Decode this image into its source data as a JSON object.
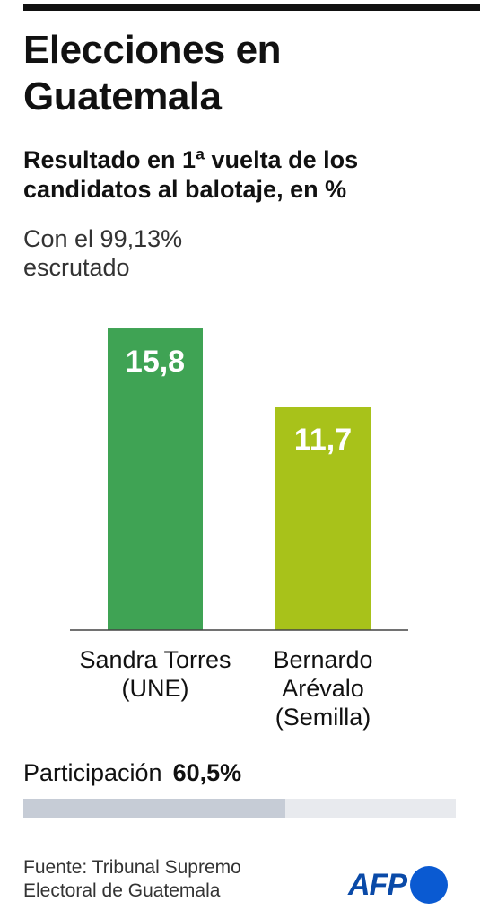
{
  "chart_data": {
    "type": "bar",
    "title": "Elecciones en Guatemala",
    "subtitle": "Resultado en 1ª vuelta de los candidatos al balotaje, en %",
    "note": "Con el 99,13% escrutado",
    "categories": [
      "Sandra Torres\n(UNE)",
      "Bernardo\nArévalo\n(Semilla)"
    ],
    "values": [
      15.8,
      11.7
    ],
    "value_labels": [
      "15,8",
      "11,7"
    ],
    "colors": [
      "#3fa354",
      "#a8c21a"
    ],
    "ylim": [
      0,
      17.4
    ],
    "grid": false
  },
  "participation": {
    "label": "Participación",
    "value_text": "60,5%",
    "value": 60.5
  },
  "source": "Fuente: Tribunal Supremo Electoral de Guatemala",
  "logo": "AFP"
}
